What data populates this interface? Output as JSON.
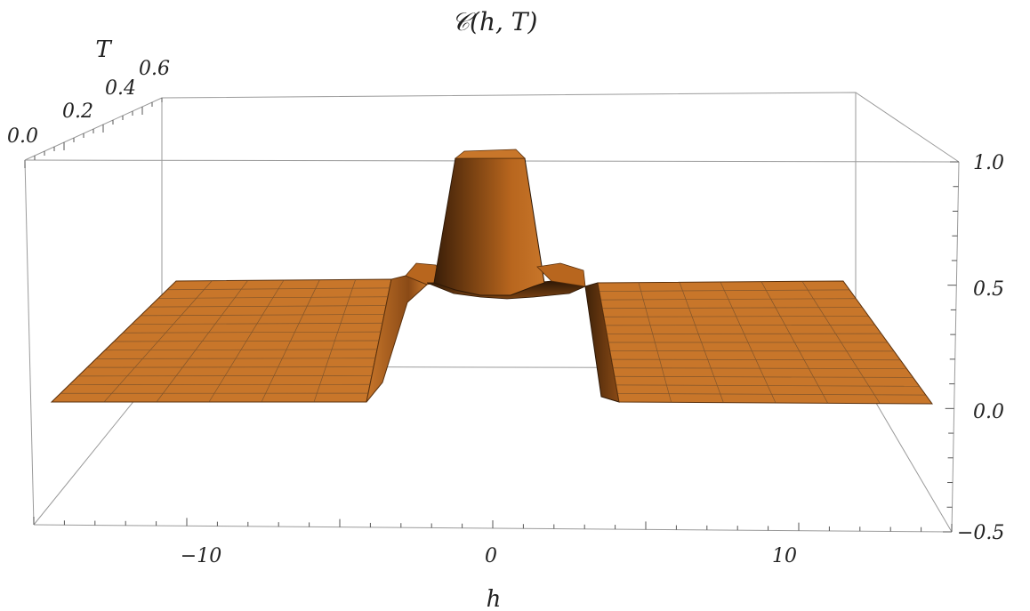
{
  "chart_data": {
    "type": "surface3d",
    "title": "𝒞(h, T)",
    "xlabel": "h",
    "ylabel": "T",
    "zlabel": "",
    "x_range": [
      -15,
      15
    ],
    "y_range": [
      0.0,
      0.7
    ],
    "z_range": [
      -0.5,
      1.0
    ],
    "x_ticks": [
      {
        "value": -10,
        "label": "−10"
      },
      {
        "value": 0,
        "label": "0"
      },
      {
        "value": 10,
        "label": "10"
      }
    ],
    "y_ticks": [
      {
        "value": 0.0,
        "label": "0.0"
      },
      {
        "value": 0.2,
        "label": "0.2"
      },
      {
        "value": 0.4,
        "label": "0.4"
      },
      {
        "value": 0.6,
        "label": "0.6"
      }
    ],
    "z_ticks": [
      {
        "value": 1.0,
        "label": "1.0"
      },
      {
        "value": 0.5,
        "label": "0.5"
      },
      {
        "value": 0.0,
        "label": "0.0"
      },
      {
        "value": -0.5,
        "label": "−0.5"
      }
    ],
    "surface": {
      "description_values": {
        "plateau_low_h": 0.0,
        "plateau_outer": 0.5,
        "peak": 1.0,
        "center_dip": 0.45
      },
      "sample_rows": [
        {
          "T": 0.0,
          "h": [
            -15,
            -4,
            -3,
            -2,
            -1,
            0,
            1,
            2,
            3,
            4,
            15
          ],
          "C": [
            0.0,
            0.0,
            0.5,
            0.5,
            1.0,
            1.0,
            1.0,
            0.5,
            0.5,
            0.0,
            0.0
          ]
        },
        {
          "T": 0.35,
          "h": [
            -15,
            -4,
            -3,
            -2,
            -1,
            0,
            1,
            2,
            3,
            4,
            15
          ],
          "C": [
            0.25,
            0.3,
            0.5,
            0.5,
            0.9,
            0.9,
            0.9,
            0.5,
            0.5,
            0.3,
            0.25
          ]
        },
        {
          "T": 0.7,
          "h": [
            -15,
            -4,
            -3,
            -2,
            -1,
            0,
            1,
            2,
            3,
            4,
            15
          ],
          "C": [
            0.5,
            0.5,
            0.5,
            0.5,
            0.8,
            0.8,
            0.8,
            0.5,
            0.5,
            0.5,
            0.5
          ]
        }
      ]
    },
    "colors": {
      "surface": "#c8762a",
      "surface_dark": "#5a300c",
      "surface_mid": "#9a5218",
      "mesh": "#6b4a2a",
      "box": "#9a9a9a"
    }
  }
}
